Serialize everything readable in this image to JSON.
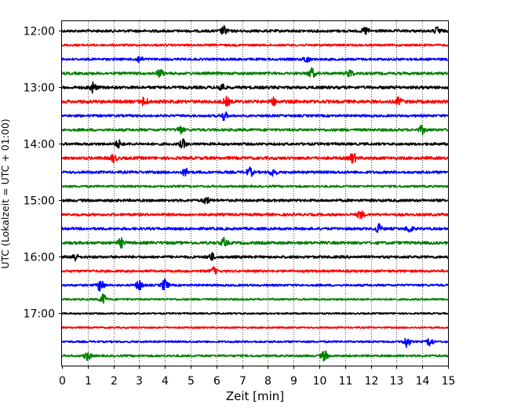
{
  "chart_data": {
    "type": "line",
    "chart_kind": "seismogram helicorder",
    "xlabel": "Zeit  [min]",
    "ylabel": "UTC (Lokalzeit = UTC + 01:00)",
    "xlim": [
      0,
      15
    ],
    "x_ticks": [
      "0",
      "1",
      "2",
      "3",
      "4",
      "5",
      "6",
      "7",
      "8",
      "9",
      "10",
      "11",
      "12",
      "13",
      "14",
      "15"
    ],
    "grid": {
      "vertical_dotted": true,
      "horizontal": false
    },
    "y_tick_labels": [
      "12:00",
      "13:00",
      "14:00",
      "15:00",
      "16:00",
      "17:00"
    ],
    "trace_interval_min": 15,
    "trace_color_cycle": [
      "#000000",
      "#ff0000",
      "#0000ff",
      "#008000"
    ],
    "traces": [
      {
        "start": "12:00",
        "color": "#000000",
        "amplitude": 1.0,
        "bursts": [
          [
            6.3,
            1.5
          ],
          [
            11.8,
            1.3
          ],
          [
            14.6,
            1.4
          ]
        ]
      },
      {
        "start": "12:15",
        "color": "#ff0000",
        "amplitude": 0.8,
        "bursts": []
      },
      {
        "start": "12:30",
        "color": "#0000ff",
        "amplitude": 0.9,
        "bursts": [
          [
            3.0,
            1.2
          ],
          [
            9.5,
            1.2
          ]
        ]
      },
      {
        "start": "12:45",
        "color": "#008000",
        "amplitude": 1.0,
        "bursts": [
          [
            3.8,
            1.4
          ],
          [
            9.7,
            1.8
          ],
          [
            11.2,
            1.3
          ]
        ]
      },
      {
        "start": "13:00",
        "color": "#000000",
        "amplitude": 1.1,
        "bursts": [
          [
            1.2,
            1.8
          ],
          [
            6.2,
            1.4
          ]
        ]
      },
      {
        "start": "13:15",
        "color": "#ff0000",
        "amplitude": 1.2,
        "bursts": [
          [
            3.2,
            1.5
          ],
          [
            6.4,
            1.4
          ],
          [
            8.2,
            1.3
          ],
          [
            13.1,
            1.3
          ]
        ]
      },
      {
        "start": "13:30",
        "color": "#0000ff",
        "amplitude": 0.9,
        "bursts": [
          [
            6.3,
            1.5
          ]
        ]
      },
      {
        "start": "13:45",
        "color": "#008000",
        "amplitude": 1.0,
        "bursts": [
          [
            4.6,
            1.3
          ],
          [
            14.0,
            1.4
          ]
        ]
      },
      {
        "start": "14:00",
        "color": "#000000",
        "amplitude": 1.0,
        "bursts": [
          [
            2.2,
            1.3
          ],
          [
            4.7,
            1.5
          ]
        ]
      },
      {
        "start": "14:15",
        "color": "#ff0000",
        "amplitude": 1.1,
        "bursts": [
          [
            2.0,
            1.3
          ],
          [
            11.3,
            1.8
          ]
        ]
      },
      {
        "start": "14:30",
        "color": "#0000ff",
        "amplitude": 1.0,
        "bursts": [
          [
            4.8,
            1.3
          ],
          [
            7.3,
            1.5
          ],
          [
            8.2,
            1.3
          ]
        ]
      },
      {
        "start": "14:45",
        "color": "#008000",
        "amplitude": 0.8,
        "bursts": []
      },
      {
        "start": "15:00",
        "color": "#000000",
        "amplitude": 1.0,
        "bursts": [
          [
            5.6,
            1.2
          ]
        ]
      },
      {
        "start": "15:15",
        "color": "#ff0000",
        "amplitude": 1.0,
        "bursts": [
          [
            11.6,
            1.4
          ]
        ]
      },
      {
        "start": "15:30",
        "color": "#0000ff",
        "amplitude": 1.0,
        "bursts": [
          [
            12.3,
            1.5
          ],
          [
            13.5,
            1.3
          ]
        ]
      },
      {
        "start": "15:45",
        "color": "#008000",
        "amplitude": 1.1,
        "bursts": [
          [
            2.3,
            1.5
          ],
          [
            6.3,
            1.4
          ]
        ]
      },
      {
        "start": "16:00",
        "color": "#000000",
        "amplitude": 1.0,
        "bursts": [
          [
            0.5,
            1.3
          ],
          [
            5.8,
            1.3
          ]
        ]
      },
      {
        "start": "16:15",
        "color": "#ff0000",
        "amplitude": 0.9,
        "bursts": [
          [
            5.9,
            1.2
          ]
        ]
      },
      {
        "start": "16:30",
        "color": "#0000ff",
        "amplitude": 0.8,
        "bursts": [
          [
            1.5,
            2.4
          ],
          [
            3.0,
            1.8
          ],
          [
            4.0,
            2.2
          ]
        ]
      },
      {
        "start": "16:45",
        "color": "#008000",
        "amplitude": 0.7,
        "bursts": [
          [
            1.6,
            1.8
          ]
        ]
      },
      {
        "start": "17:00",
        "color": "#000000",
        "amplitude": 0.6,
        "bursts": []
      },
      {
        "start": "17:15",
        "color": "#ff0000",
        "amplitude": 0.6,
        "bursts": []
      },
      {
        "start": "17:30",
        "color": "#0000ff",
        "amplitude": 0.7,
        "bursts": [
          [
            13.4,
            2.0
          ],
          [
            14.3,
            1.6
          ]
        ]
      },
      {
        "start": "17:45",
        "color": "#008000",
        "amplitude": 0.8,
        "bursts": [
          [
            1.0,
            1.6
          ],
          [
            10.2,
            1.8
          ]
        ]
      }
    ]
  }
}
